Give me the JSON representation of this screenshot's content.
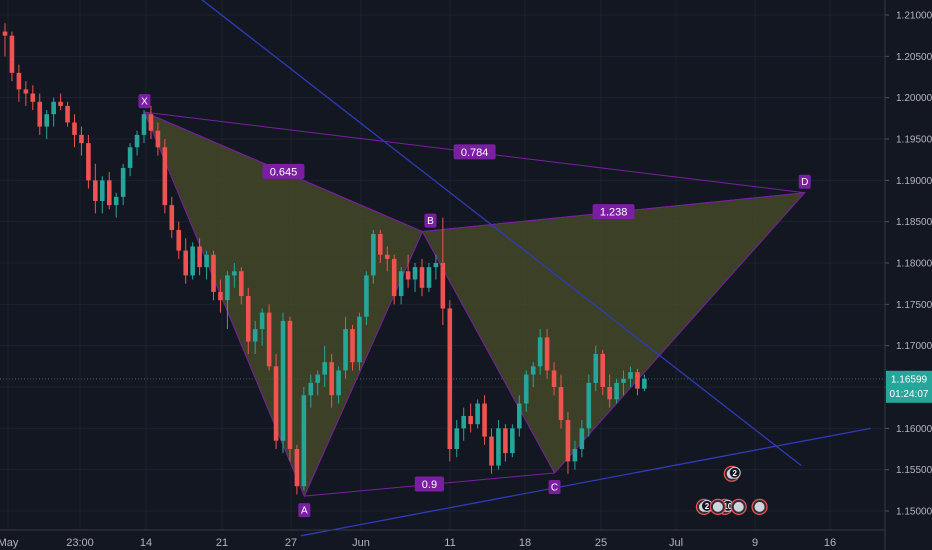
{
  "chart_data": {
    "type": "candlestick",
    "y_axis": {
      "ticks": [
        "1.21000",
        "1.20500",
        "1.20000",
        "1.19500",
        "1.19000",
        "1.18500",
        "1.18000",
        "1.17500",
        "1.17000",
        "1.16500",
        "1.16000",
        "1.15500",
        "1.15000"
      ],
      "range": [
        1.1475,
        1.2125
      ]
    },
    "x_axis": {
      "ticks": [
        "May",
        "23:00",
        "14",
        "21",
        "27",
        "Jun",
        "11",
        "18",
        "25",
        "Jul",
        "9",
        "16"
      ]
    },
    "last_price": {
      "value": "1.16599",
      "countdown": "01:24:07",
      "color": "#26a69a"
    },
    "colors": {
      "up": "#26a69a",
      "down": "#ef5350",
      "pattern_fill": "#4a4f2a",
      "pattern_stroke": "#7b1fa2",
      "trendline": "#2f3bb8",
      "label_bg": "#7b1fa2"
    },
    "candles_ohlc": [
      [
        1.208,
        1.209,
        1.205,
        1.2075
      ],
      [
        1.2075,
        1.208,
        1.202,
        1.203
      ],
      [
        1.203,
        1.204,
        1.1995,
        1.201
      ],
      [
        1.201,
        1.202,
        1.199,
        1.2005
      ],
      [
        1.2005,
        1.2015,
        1.1985,
        1.1995
      ],
      [
        1.1995,
        1.2005,
        1.1955,
        1.1965
      ],
      [
        1.1965,
        1.1985,
        1.195,
        1.198
      ],
      [
        1.198,
        1.2,
        1.1965,
        1.1995
      ],
      [
        1.1995,
        1.2005,
        1.1985,
        1.199
      ],
      [
        1.199,
        1.1995,
        1.1965,
        1.197
      ],
      [
        1.197,
        1.198,
        1.194,
        1.1955
      ],
      [
        1.1955,
        1.1965,
        1.193,
        1.1945
      ],
      [
        1.1945,
        1.1955,
        1.189,
        1.19
      ],
      [
        1.19,
        1.192,
        1.186,
        1.1875
      ],
      [
        1.1875,
        1.1905,
        1.186,
        1.19
      ],
      [
        1.19,
        1.191,
        1.1865,
        1.187
      ],
      [
        1.187,
        1.1885,
        1.1855,
        1.188
      ],
      [
        1.188,
        1.192,
        1.187,
        1.1915
      ],
      [
        1.1915,
        1.1945,
        1.1905,
        1.194
      ],
      [
        1.194,
        1.196,
        1.193,
        1.1955
      ],
      [
        1.1955,
        1.1985,
        1.1945,
        1.198
      ],
      [
        1.198,
        1.199,
        1.195,
        1.196
      ],
      [
        1.196,
        1.197,
        1.193,
        1.194
      ],
      [
        1.194,
        1.195,
        1.186,
        1.187
      ],
      [
        1.187,
        1.188,
        1.183,
        1.184
      ],
      [
        1.184,
        1.185,
        1.1805,
        1.1815
      ],
      [
        1.1815,
        1.183,
        1.1775,
        1.1785
      ],
      [
        1.1785,
        1.1825,
        1.178,
        1.182
      ],
      [
        1.182,
        1.183,
        1.1785,
        1.1795
      ],
      [
        1.1795,
        1.1815,
        1.178,
        1.181
      ],
      [
        1.181,
        1.1815,
        1.1755,
        1.1765
      ],
      [
        1.1765,
        1.178,
        1.174,
        1.1755
      ],
      [
        1.1755,
        1.179,
        1.172,
        1.1785
      ],
      [
        1.1785,
        1.18,
        1.177,
        1.179
      ],
      [
        1.179,
        1.1795,
        1.175,
        1.176
      ],
      [
        1.176,
        1.177,
        1.169,
        1.1705
      ],
      [
        1.1705,
        1.173,
        1.169,
        1.172
      ],
      [
        1.172,
        1.1745,
        1.17,
        1.174
      ],
      [
        1.174,
        1.175,
        1.167,
        1.1675
      ],
      [
        1.1675,
        1.169,
        1.1575,
        1.1585
      ],
      [
        1.1585,
        1.174,
        1.157,
        1.173
      ],
      [
        1.173,
        1.1735,
        1.156,
        1.1575
      ],
      [
        1.1575,
        1.158,
        1.152,
        1.153
      ],
      [
        1.153,
        1.165,
        1.1525,
        1.164
      ],
      [
        1.164,
        1.1665,
        1.1625,
        1.1655
      ],
      [
        1.1655,
        1.167,
        1.164,
        1.1665
      ],
      [
        1.1665,
        1.17,
        1.165,
        1.168
      ],
      [
        1.168,
        1.169,
        1.1625,
        1.164
      ],
      [
        1.164,
        1.1675,
        1.163,
        1.167
      ],
      [
        1.167,
        1.1735,
        1.166,
        1.172
      ],
      [
        1.172,
        1.1725,
        1.167,
        1.168
      ],
      [
        1.168,
        1.174,
        1.167,
        1.1735
      ],
      [
        1.1735,
        1.179,
        1.1725,
        1.1785
      ],
      [
        1.1785,
        1.184,
        1.1775,
        1.1835
      ],
      [
        1.1835,
        1.184,
        1.18,
        1.181
      ],
      [
        1.181,
        1.182,
        1.179,
        1.1805
      ],
      [
        1.1805,
        1.181,
        1.175,
        1.176
      ],
      [
        1.176,
        1.1795,
        1.175,
        1.179
      ],
      [
        1.179,
        1.181,
        1.177,
        1.178
      ],
      [
        1.178,
        1.18,
        1.1765,
        1.1795
      ],
      [
        1.1795,
        1.1805,
        1.176,
        1.177
      ],
      [
        1.177,
        1.18,
        1.1765,
        1.1795
      ],
      [
        1.1795,
        1.181,
        1.178,
        1.18
      ],
      [
        1.18,
        1.1855,
        1.1725,
        1.1745
      ],
      [
        1.1745,
        1.1755,
        1.156,
        1.1575
      ],
      [
        1.1575,
        1.161,
        1.1565,
        1.16
      ],
      [
        1.16,
        1.1625,
        1.1585,
        1.1615
      ],
      [
        1.1615,
        1.163,
        1.1595,
        1.1605
      ],
      [
        1.1605,
        1.1635,
        1.16,
        1.163
      ],
      [
        1.163,
        1.164,
        1.158,
        1.159
      ],
      [
        1.159,
        1.16,
        1.1545,
        1.1555
      ],
      [
        1.1555,
        1.161,
        1.155,
        1.16
      ],
      [
        1.16,
        1.1605,
        1.156,
        1.157
      ],
      [
        1.157,
        1.1605,
        1.1565,
        1.16
      ],
      [
        1.16,
        1.164,
        1.159,
        1.163
      ],
      [
        1.163,
        1.167,
        1.162,
        1.1665
      ],
      [
        1.1665,
        1.168,
        1.165,
        1.1675
      ],
      [
        1.1675,
        1.172,
        1.1665,
        1.171
      ],
      [
        1.171,
        1.172,
        1.166,
        1.167
      ],
      [
        1.167,
        1.168,
        1.164,
        1.165
      ],
      [
        1.165,
        1.1665,
        1.16,
        1.161
      ],
      [
        1.161,
        1.162,
        1.1545,
        1.156
      ],
      [
        1.156,
        1.1585,
        1.155,
        1.1575
      ],
      [
        1.1575,
        1.161,
        1.1565,
        1.16
      ],
      [
        1.16,
        1.1665,
        1.159,
        1.1655
      ],
      [
        1.1655,
        1.17,
        1.1645,
        1.169
      ],
      [
        1.169,
        1.1695,
        1.164,
        1.165
      ],
      [
        1.165,
        1.1665,
        1.1625,
        1.1635
      ],
      [
        1.1635,
        1.166,
        1.163,
        1.1655
      ],
      [
        1.1655,
        1.167,
        1.164,
        1.166
      ],
      [
        1.166,
        1.1675,
        1.165,
        1.1668
      ],
      [
        1.1668,
        1.1672,
        1.164,
        1.1648
      ],
      [
        1.1648,
        1.1665,
        1.1645,
        1.166
      ]
    ],
    "harmonic_pattern": {
      "points": [
        {
          "label": "X",
          "bar": 20.5,
          "price": 1.19825
        },
        {
          "label": "A",
          "bar": 43.5,
          "price": 1.1518
        },
        {
          "label": "B",
          "bar": 60.5,
          "price": 1.1838
        },
        {
          "label": "C",
          "bar": 79.5,
          "price": 1.1546
        },
        {
          "label": "D",
          "bar": 115.5,
          "price": 1.1885
        }
      ],
      "ratios": [
        {
          "text": "0.645",
          "between": [
            "X",
            "B"
          ]
        },
        {
          "text": "0.784",
          "between": [
            "X",
            "D"
          ]
        },
        {
          "text": "1.238",
          "between": [
            "B",
            "D"
          ]
        },
        {
          "text": "0.9",
          "between": [
            "A",
            "C"
          ]
        }
      ]
    },
    "trendlines": [
      {
        "name": "descending",
        "from": {
          "bar": 27,
          "price": 1.213
        },
        "to": {
          "bar": 115,
          "price": 1.1555
        }
      },
      {
        "name": "ascending",
        "from": {
          "bar": 43,
          "price": 1.147
        },
        "to": {
          "bar": 125,
          "price": 1.16
        }
      }
    ],
    "events": [
      {
        "text": "2",
        "bar": 105,
        "price": 1.1545
      },
      {
        "text": "2",
        "bar": 101,
        "price": 1.1505
      },
      {
        "text": "10",
        "bar": 104,
        "price": 1.1505
      },
      {
        "text": "",
        "bar": 103,
        "price": 1.1505
      },
      {
        "text": "",
        "bar": 106,
        "price": 1.1505
      },
      {
        "text": "",
        "bar": 109,
        "price": 1.1505
      }
    ]
  }
}
